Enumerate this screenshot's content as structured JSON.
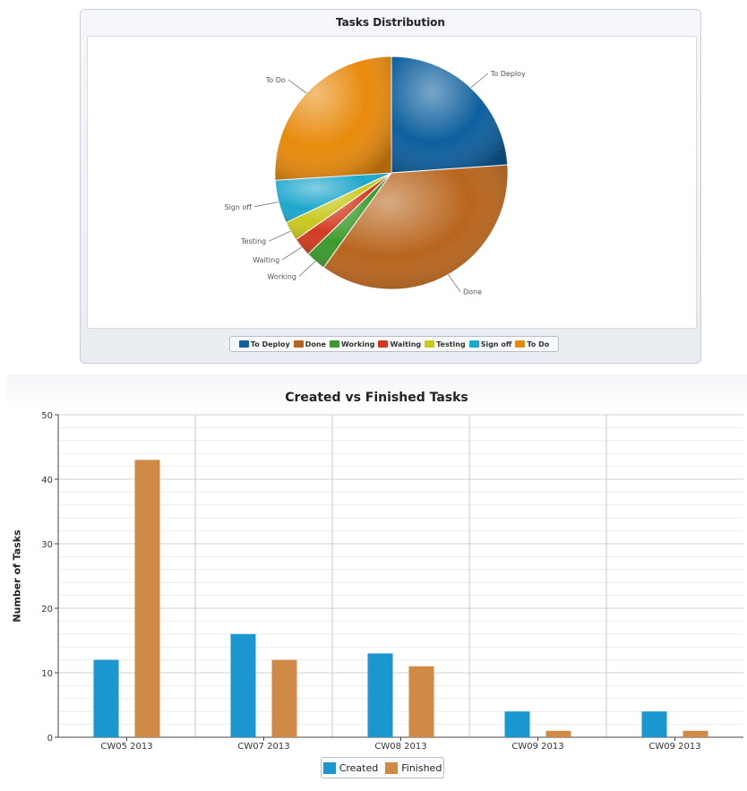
{
  "chart_data": [
    {
      "type": "pie",
      "title": "Tasks Distribution",
      "slices": [
        {
          "label": "To Deploy",
          "value": 23.9,
          "color": "#0d5f9e"
        },
        {
          "label": "Done",
          "value": 36.0,
          "color": "#b8651d"
        },
        {
          "label": "Working",
          "value": 2.8,
          "color": "#3b9a2c"
        },
        {
          "label": "Waiting",
          "value": 2.6,
          "color": "#d23a1f"
        },
        {
          "label": "Testing",
          "value": 2.7,
          "color": "#c9c81e"
        },
        {
          "label": "Sign off",
          "value": 6.0,
          "color": "#1da7cc"
        },
        {
          "label": "To Do",
          "value": 26.0,
          "color": "#e88a0c"
        }
      ],
      "legend": {
        "position": "bottom"
      }
    },
    {
      "type": "bar",
      "title": "Created vs Finished Tasks",
      "xlabel": "",
      "ylabel": "Number of Tasks",
      "categories": [
        "CW05 2013",
        "CW07 2013",
        "CW08 2013",
        "CW09 2013",
        "CW09 2013"
      ],
      "series": [
        {
          "name": "Created",
          "values": [
            12,
            16,
            13,
            4,
            4
          ],
          "color": "#1a97d0"
        },
        {
          "name": "Finished",
          "values": [
            43,
            12,
            11,
            1,
            1
          ],
          "color": "#cf8a45"
        }
      ],
      "ylim": [
        0,
        50
      ],
      "yticks": [
        0,
        10,
        20,
        30,
        40,
        50
      ],
      "grid": true,
      "legend": {
        "position": "bottom"
      }
    }
  ]
}
